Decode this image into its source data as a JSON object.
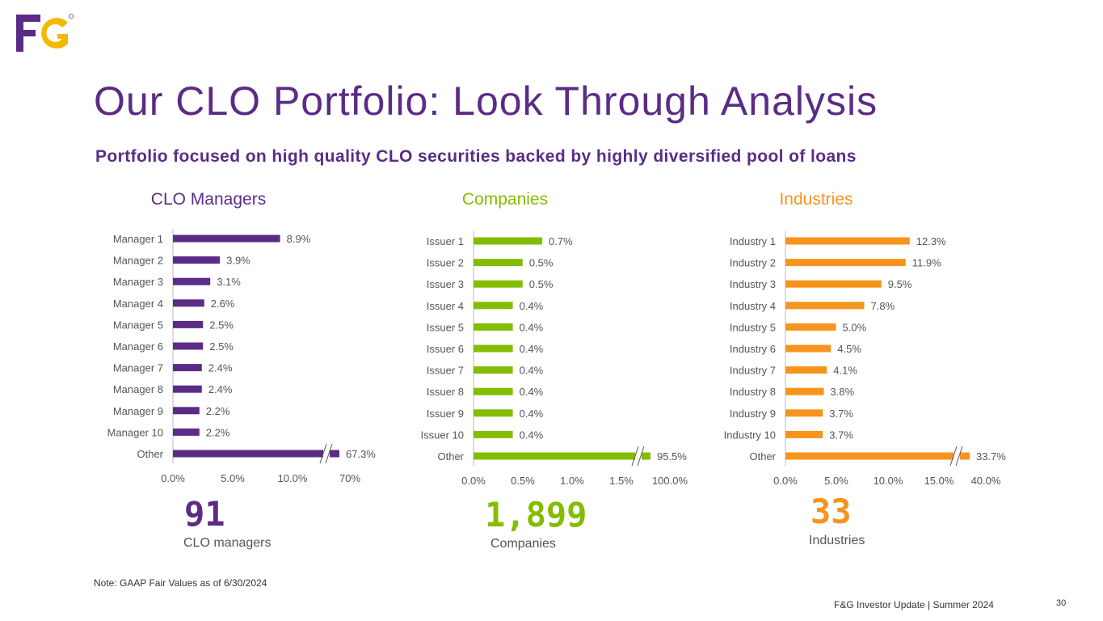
{
  "colors": {
    "brand_purple": "#5b2c86",
    "brand_yellow": "#f5b800",
    "managers": "#5b2c86",
    "companies": "#84bd00",
    "industries": "#f7941d",
    "axis_text": "#555555"
  },
  "logo": {
    "text": "F&G",
    "icon": "fg-logo-icon"
  },
  "title": "Our CLO Portfolio: Look Through Analysis",
  "subtitle": "Portfolio focused on high quality CLO securities backed by highly diversified pool of loans",
  "chart_data": [
    {
      "type": "bar",
      "orientation": "horizontal",
      "title": "CLO Managers",
      "categories": [
        "Manager 1",
        "Manager 2",
        "Manager 3",
        "Manager 4",
        "Manager 5",
        "Manager 6",
        "Manager 7",
        "Manager 8",
        "Manager 9",
        "Manager 10",
        "Other"
      ],
      "values": [
        8.9,
        3.9,
        3.1,
        2.6,
        2.5,
        2.5,
        2.4,
        2.4,
        2.2,
        2.2,
        67.3
      ],
      "value_labels": [
        "8.9%",
        "3.9%",
        "3.1%",
        "2.6%",
        "2.5%",
        "2.5%",
        "2.4%",
        "2.4%",
        "2.2%",
        "2.2%",
        "67.3%"
      ],
      "x_ticks": [
        "0.0%",
        "5.0%",
        "10.0%",
        "70%"
      ],
      "xlim": [
        0,
        14
      ],
      "broken_axis": true,
      "grid": false,
      "color": "#5b2c86"
    },
    {
      "type": "bar",
      "orientation": "horizontal",
      "title": "Companies",
      "categories": [
        "Issuer 1",
        "Issuer 2",
        "Issuer 3",
        "Issuer 4",
        "Issuer 5",
        "Issuer 6",
        "Issuer 7",
        "Issuer 8",
        "Issuer 9",
        "Issuer 10",
        "Other"
      ],
      "values": [
        0.7,
        0.5,
        0.5,
        0.4,
        0.4,
        0.4,
        0.4,
        0.4,
        0.4,
        0.4,
        95.5
      ],
      "value_labels": [
        "0.7%",
        "0.5%",
        "0.5%",
        "0.4%",
        "0.4%",
        "0.4%",
        "0.4%",
        "0.4%",
        "0.4%",
        "0.4%",
        "95.5%"
      ],
      "x_ticks": [
        "0.0%",
        "0.5%",
        "1.0%",
        "1.5%",
        "100.0%"
      ],
      "xlim": [
        0,
        1.8
      ],
      "broken_axis": true,
      "grid": false,
      "color": "#84bd00"
    },
    {
      "type": "bar",
      "orientation": "horizontal",
      "title": "Industries",
      "categories": [
        "Industry 1",
        "Industry 2",
        "Industry 3",
        "Industry 4",
        "Industry 5",
        "Industry 6",
        "Industry 7",
        "Industry 8",
        "Industry 9",
        "Industry 10",
        "Other"
      ],
      "values": [
        12.3,
        11.9,
        9.5,
        7.8,
        5.0,
        4.5,
        4.1,
        3.8,
        3.7,
        3.7,
        33.7
      ],
      "value_labels": [
        "12.3%",
        "11.9%",
        "9.5%",
        "7.8%",
        "5.0%",
        "4.5%",
        "4.1%",
        "3.8%",
        "3.7%",
        "3.7%",
        "33.7%"
      ],
      "x_ticks": [
        "0.0%",
        "5.0%",
        "10.0%",
        "15.0%",
        "40.0%"
      ],
      "xlim": [
        0,
        17.5
      ],
      "broken_axis": true,
      "grid": false,
      "color": "#f7941d"
    }
  ],
  "kpis": [
    {
      "value": "91",
      "label": "CLO managers",
      "color": "#5b2c86"
    },
    {
      "value": "1,899",
      "label": "Companies",
      "color": "#84bd00"
    },
    {
      "value": "33",
      "label": "Industries",
      "color": "#f7941d"
    }
  ],
  "note": "Note: GAAP Fair Values as of 6/30/2024",
  "footer": "F&G Investor Update | Summer 2024",
  "page_number": "30"
}
